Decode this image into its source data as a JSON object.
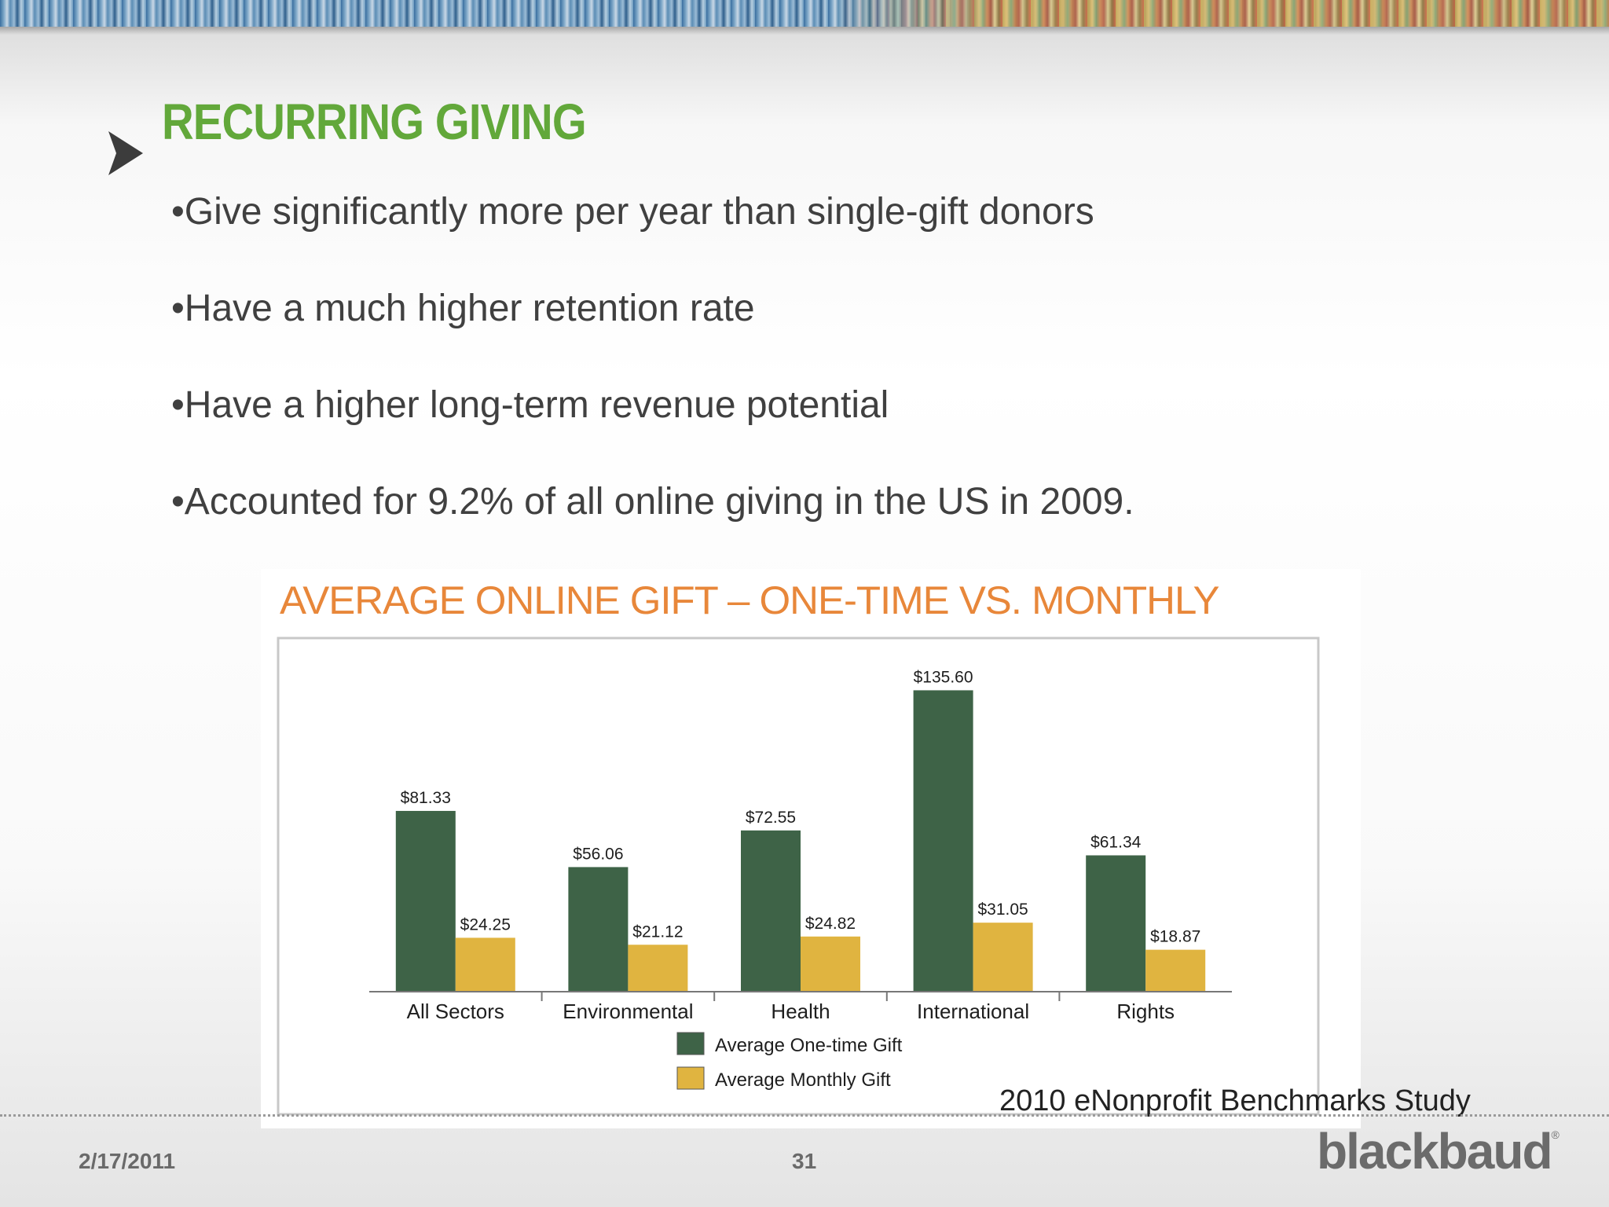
{
  "slide": {
    "title": "RECURRING GIVING",
    "bullets": [
      "•Give significantly more per year than single-gift donors",
      "•Have a much higher retention rate",
      "•Have a higher long-term revenue potential",
      "•Accounted for 9.2% of all online giving in the US in 2009."
    ],
    "source_note": "2010 eNonprofit Benchmarks  Study",
    "footer": {
      "date": "2/17/2011",
      "page_number": "31",
      "brand": "blackbaud",
      "brand_mark": "®"
    }
  },
  "colors": {
    "title_green": "#62a83a",
    "chart_title_orange": "#e8873a",
    "one_time_series": "#3e6347",
    "monthly_series": "#e0b440",
    "body_text": "#404040"
  },
  "chart_data": {
    "type": "bar",
    "title": "AVERAGE ONLINE GIFT – ONE-TIME  VS. MONTHLY",
    "categories": [
      "All Sectors",
      "Environmental",
      "Health",
      "International",
      "Rights"
    ],
    "series": [
      {
        "name": "Average One-time Gift",
        "values": [
          81.33,
          56.06,
          72.55,
          135.6,
          61.34
        ],
        "labels": [
          "$81.33",
          "$56.06",
          "$72.55",
          "$135.60",
          "$61.34"
        ]
      },
      {
        "name": "Average Monthly Gift",
        "values": [
          24.25,
          21.12,
          24.82,
          31.05,
          18.87
        ],
        "labels": [
          "$24.25",
          "$21.12",
          "$24.82",
          "$31.05",
          "$18.87"
        ]
      }
    ],
    "ylim": [
      0,
      140
    ],
    "grid": false,
    "legend": "bottom-center"
  }
}
